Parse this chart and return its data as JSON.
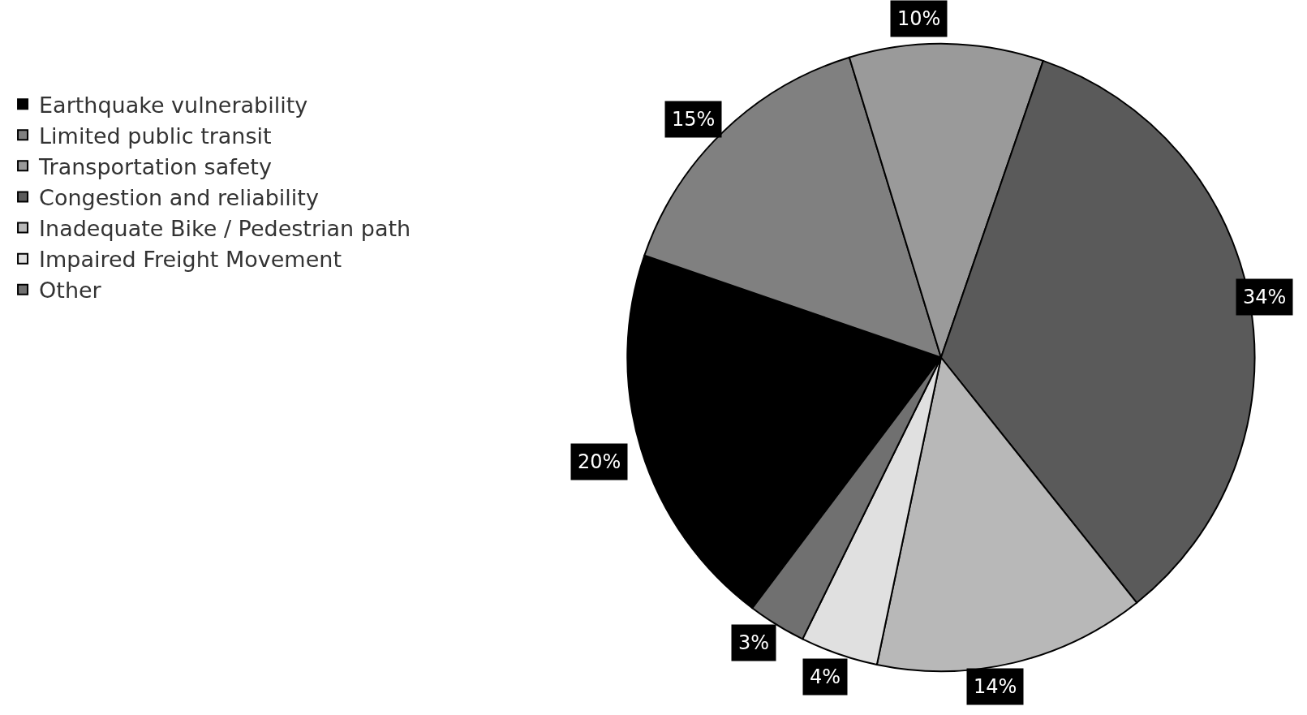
{
  "chart_data": {
    "type": "pie",
    "categories": [
      "Earthquake vulnerability",
      "Limited public transit",
      "Transportation safety",
      "Congestion and reliability",
      "Inadequate Bike / Pedestrian path",
      "Impaired Freight Movement",
      "Other"
    ],
    "values": [
      20,
      15,
      10,
      34,
      14,
      4,
      3
    ],
    "colors": [
      "#000000",
      "#808080",
      "#9a9a9a",
      "#5a5a5a",
      "#b8b8b8",
      "#e0e0e0",
      "#707070"
    ],
    "value_labels": [
      "20%",
      "15%",
      "10%",
      "34%",
      "14%",
      "4%",
      "3%"
    ],
    "legend": "left"
  }
}
